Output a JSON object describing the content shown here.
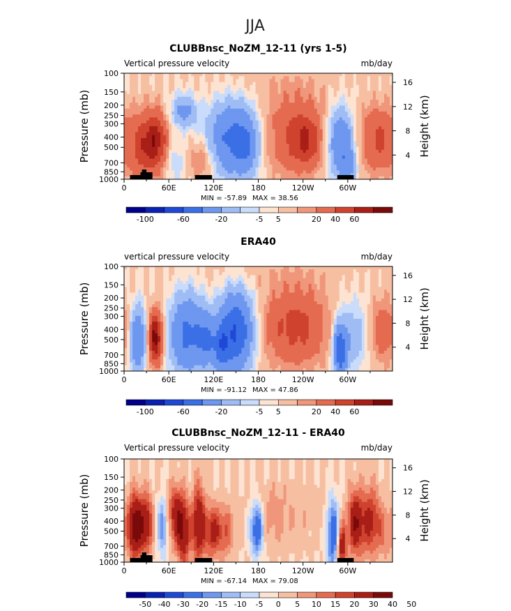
{
  "figure": {
    "season_title": "JJA"
  },
  "palettes": {
    "full": [
      "#00008b",
      "#0a22b2",
      "#1f48d6",
      "#3a6fe6",
      "#6e97f0",
      "#9fbcf5",
      "#c9dcfb",
      "#fde3d2",
      "#f7bfa2",
      "#f0967a",
      "#e56b50",
      "#cf432e",
      "#a91e17",
      "#7a0a0a"
    ],
    "diff": [
      "#00008b",
      "#0a22b2",
      "#1f48d6",
      "#3a6fe6",
      "#6e97f0",
      "#9fbcf5",
      "#c9dcfb",
      "#fde3d2",
      "#f7bfa2",
      "#f0967a",
      "#e56b50",
      "#cf432e",
      "#a91e17",
      "#7a0a0a"
    ],
    "mask": "#000000"
  },
  "chart_data": [
    {
      "type": "heatmap",
      "title": "CLUBBnsc_NoZM_12-11 (yrs 1-5)",
      "variable": "Vertical pressure velocity",
      "units": "mb/day",
      "ylabel": "Pressure (mb)",
      "y2label": "Height (km)",
      "xticks": [
        "0",
        "60E",
        "120E",
        "180",
        "120W",
        "60W"
      ],
      "yticks": [
        "100",
        "150",
        "200",
        "250",
        "300",
        "400",
        "500",
        "700",
        "850",
        "1000"
      ],
      "y2ticks": [
        "16",
        "12",
        "8",
        "4"
      ],
      "min_label": "MIN = -57.89",
      "max_label": "MAX = 38.56",
      "levels": [
        -100,
        -80,
        -60,
        -40,
        -20,
        -10,
        -5,
        0,
        5,
        10,
        20,
        30,
        40,
        60
      ],
      "colorbar_labels": [
        "-100",
        "-60",
        "-20",
        "-5",
        "5",
        "20",
        "40",
        "60"
      ],
      "colorbar_label_boxes": [
        1,
        3,
        5,
        7,
        8,
        10,
        11,
        12
      ],
      "features": [
        {
          "lon": 30,
          "p": 480,
          "sx": 16,
          "sy": 0.5,
          "v": 30
        },
        {
          "lon": 45,
          "p": 400,
          "sx": 9,
          "sy": 0.4,
          "v": 18
        },
        {
          "lon": 80,
          "p": 230,
          "sx": 12,
          "sy": 0.25,
          "v": -25
        },
        {
          "lon": 70,
          "p": 700,
          "sx": 10,
          "sy": 0.3,
          "v": -10
        },
        {
          "lon": 105,
          "p": 650,
          "sx": 14,
          "sy": 0.3,
          "v": 14
        },
        {
          "lon": 145,
          "p": 420,
          "sx": 22,
          "sy": 0.55,
          "v": -45
        },
        {
          "lon": 165,
          "p": 500,
          "sx": 10,
          "sy": 0.4,
          "v": -20
        },
        {
          "lon": 230,
          "p": 380,
          "sx": 30,
          "sy": 0.6,
          "v": 22
        },
        {
          "lon": 245,
          "p": 450,
          "sx": 12,
          "sy": 0.35,
          "v": 15
        },
        {
          "lon": 290,
          "p": 450,
          "sx": 12,
          "sy": 0.5,
          "v": -40
        },
        {
          "lon": 300,
          "p": 750,
          "sx": 8,
          "sy": 0.3,
          "v": -20
        },
        {
          "lon": 340,
          "p": 420,
          "sx": 18,
          "sy": 0.5,
          "v": 22
        },
        {
          "lon": 200,
          "p": 120,
          "sx": 60,
          "sy": 0.3,
          "v": 3
        }
      ]
    },
    {
      "type": "heatmap",
      "title": "ERA40",
      "variable": "vertical pressure velocity",
      "units": "mb/day",
      "ylabel": "Pressure (mb)",
      "y2label": "Height (km)",
      "xticks": [
        "0",
        "60E",
        "120E",
        "180",
        "120W",
        "60W"
      ],
      "yticks": [
        "100",
        "150",
        "200",
        "250",
        "300",
        "400",
        "500",
        "700",
        "850",
        "1000"
      ],
      "y2ticks": [
        "16",
        "12",
        "8",
        "4"
      ],
      "min_label": "MIN = -91.12",
      "max_label": "MAX = 47.86",
      "levels": [
        -100,
        -80,
        -60,
        -40,
        -20,
        -10,
        -5,
        0,
        5,
        10,
        20,
        30,
        40,
        60
      ],
      "colorbar_labels": [
        "-100",
        "-60",
        "-20",
        "-5",
        "5",
        "20",
        "40",
        "60"
      ],
      "colorbar_label_boxes": [
        1,
        3,
        5,
        7,
        8,
        10,
        11,
        12
      ],
      "features": [
        {
          "lon": 18,
          "p": 500,
          "sx": 8,
          "sy": 0.5,
          "v": -40
        },
        {
          "lon": 42,
          "p": 480,
          "sx": 7,
          "sy": 0.4,
          "v": 45
        },
        {
          "lon": 85,
          "p": 450,
          "sx": 16,
          "sy": 0.6,
          "v": -45
        },
        {
          "lon": 110,
          "p": 500,
          "sx": 8,
          "sy": 0.4,
          "v": -30
        },
        {
          "lon": 150,
          "p": 420,
          "sx": 16,
          "sy": 0.6,
          "v": -60
        },
        {
          "lon": 130,
          "p": 600,
          "sx": 8,
          "sy": 0.35,
          "v": -35
        },
        {
          "lon": 230,
          "p": 380,
          "sx": 32,
          "sy": 0.6,
          "v": 24
        },
        {
          "lon": 290,
          "p": 650,
          "sx": 6,
          "sy": 0.4,
          "v": -55
        },
        {
          "lon": 310,
          "p": 450,
          "sx": 18,
          "sy": 0.55,
          "v": -18
        },
        {
          "lon": 345,
          "p": 420,
          "sx": 18,
          "sy": 0.5,
          "v": 18
        },
        {
          "lon": 200,
          "p": 120,
          "sx": 80,
          "sy": 0.3,
          "v": 3
        }
      ]
    },
    {
      "type": "heatmap",
      "title": "CLUBBnsc_NoZM_12-11 - ERA40",
      "variable": "Vertical pressure velocity",
      "units": "mb/day",
      "ylabel": "Pressure (mb)",
      "y2label": "Height (km)",
      "xticks": [
        "0",
        "60E",
        "120E",
        "180",
        "120W",
        "60W"
      ],
      "yticks": [
        "100",
        "150",
        "200",
        "250",
        "300",
        "400",
        "500",
        "700",
        "850",
        "1000"
      ],
      "y2ticks": [
        "16",
        "12",
        "8",
        "4"
      ],
      "min_label": "MIN = -67.14",
      "max_label": "MAX = 79.08",
      "levels": [
        -50,
        -40,
        -30,
        -20,
        -15,
        -10,
        -5,
        0,
        5,
        10,
        15,
        20,
        30,
        40,
        50
      ],
      "colorbar_labels": [
        "-50",
        "-40",
        "-30",
        "-20",
        "-15",
        "-10",
        "-5",
        "0",
        "5",
        "10",
        "15",
        "20",
        "30",
        "40",
        "50"
      ],
      "colorbar_label_boxes": [
        1,
        2,
        3,
        4,
        5,
        6,
        7,
        8,
        9,
        10,
        11,
        12,
        13,
        14,
        15
      ],
      "features": [
        {
          "lon": 15,
          "p": 450,
          "sx": 7,
          "sy": 0.5,
          "v": 38
        },
        {
          "lon": 30,
          "p": 420,
          "sx": 6,
          "sy": 0.45,
          "v": 25
        },
        {
          "lon": 52,
          "p": 450,
          "sx": 5,
          "sy": 0.45,
          "v": -20
        },
        {
          "lon": 70,
          "p": 350,
          "sx": 8,
          "sy": 0.45,
          "v": 25
        },
        {
          "lon": 80,
          "p": 550,
          "sx": 6,
          "sy": 0.5,
          "v": 25
        },
        {
          "lon": 100,
          "p": 420,
          "sx": 6,
          "sy": 0.6,
          "v": 30
        },
        {
          "lon": 118,
          "p": 500,
          "sx": 7,
          "sy": 0.4,
          "v": 22
        },
        {
          "lon": 135,
          "p": 500,
          "sx": 8,
          "sy": 0.4,
          "v": 15
        },
        {
          "lon": 178,
          "p": 480,
          "sx": 6,
          "sy": 0.4,
          "v": -30
        },
        {
          "lon": 200,
          "p": 400,
          "sx": 12,
          "sy": 0.5,
          "v": 5
        },
        {
          "lon": 280,
          "p": 520,
          "sx": 6,
          "sy": 0.55,
          "v": -28
        },
        {
          "lon": 292,
          "p": 700,
          "sx": 4,
          "sy": 0.35,
          "v": 28
        },
        {
          "lon": 310,
          "p": 420,
          "sx": 7,
          "sy": 0.5,
          "v": 28
        },
        {
          "lon": 330,
          "p": 400,
          "sx": 9,
          "sy": 0.55,
          "v": 22
        },
        {
          "lon": 350,
          "p": 500,
          "sx": 8,
          "sy": 0.4,
          "v": 10
        },
        {
          "lon": 230,
          "p": 300,
          "sx": 40,
          "sy": 0.5,
          "v": 4
        }
      ]
    }
  ]
}
